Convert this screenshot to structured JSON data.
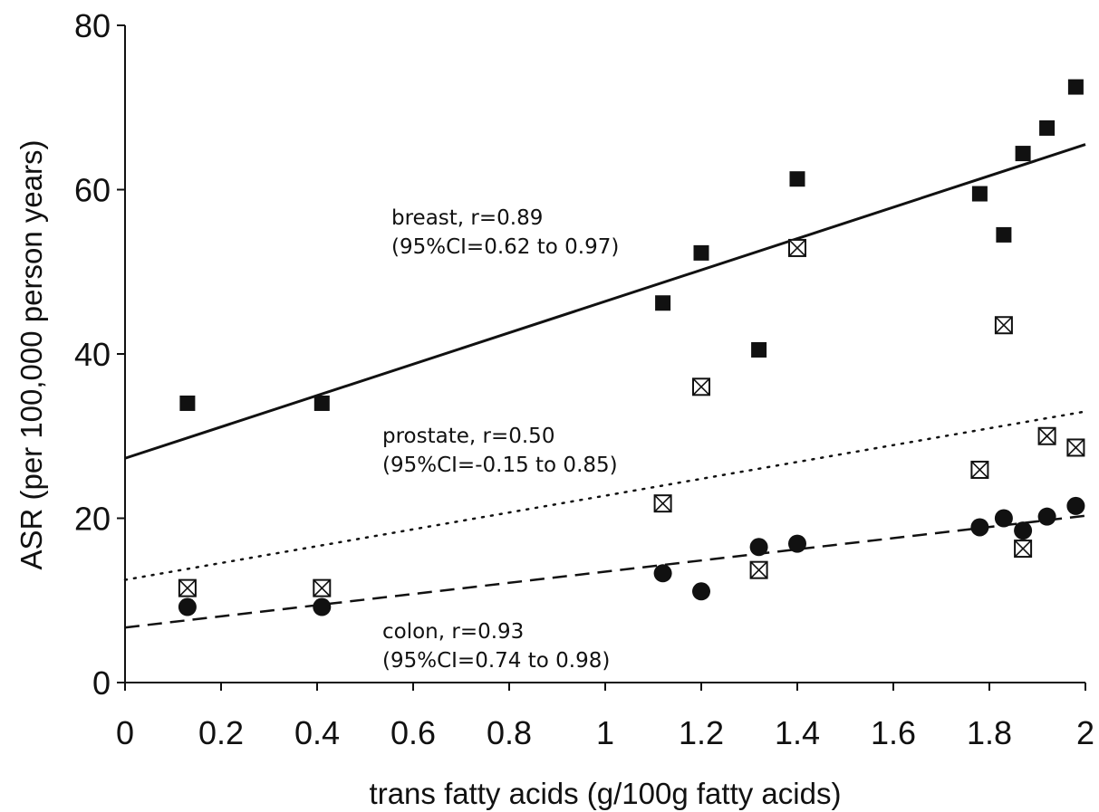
{
  "chart_data": {
    "type": "scatter",
    "title": "",
    "xlabel": "trans fatty acids (g/100g fatty acids)",
    "ylabel": "ASR (per 100,000 person years)",
    "xlim": [
      0,
      2
    ],
    "ylim": [
      0,
      80
    ],
    "x_ticks": [
      0,
      0.2,
      0.4,
      0.6,
      0.8,
      1,
      1.2,
      1.4,
      1.6,
      1.8,
      2
    ],
    "x_tick_labels": [
      "0",
      "0.2",
      "0.4",
      "0.6",
      "0.8",
      "1",
      "1.2",
      "1.4",
      "1.6",
      "1.8",
      "2"
    ],
    "y_ticks": [
      0,
      20,
      40,
      60,
      80
    ],
    "y_tick_labels": [
      "0",
      "20",
      "40",
      "60",
      "80"
    ],
    "grid": false,
    "legend": "none",
    "series": [
      {
        "marker": "filled-square",
        "line_style": "solid",
        "fit": [
          27.3,
          65.5
        ],
        "label_lines": [
          "breast, r=0.89",
          "(95%CI=0.62 to 0.97)"
        ],
        "x": [
          0.13,
          0.41,
          1.12,
          1.2,
          1.32,
          1.4,
          1.78,
          1.83,
          1.87,
          1.92,
          1.98
        ],
        "y": [
          34,
          34,
          46.2,
          52.3,
          40.5,
          61.3,
          59.5,
          54.5,
          64.4,
          67.5,
          72.5
        ]
      },
      {
        "marker": "crossed-box",
        "line_style": "dotted",
        "fit": [
          12.5,
          33
        ],
        "label_lines": [
          "prostate, r=0.50",
          "(95%CI=-0.15 to 0.85)"
        ],
        "x": [
          0.13,
          0.41,
          1.12,
          1.2,
          1.32,
          1.4,
          1.78,
          1.83,
          1.87,
          1.92,
          1.98
        ],
        "y": [
          11.5,
          11.5,
          21.8,
          36,
          13.7,
          52.9,
          25.9,
          43.5,
          16.3,
          30,
          28.6
        ]
      },
      {
        "marker": "filled-circle",
        "line_style": "dashed",
        "fit": [
          6.7,
          20.3
        ],
        "label_lines": [
          "colon, r=0.93",
          "(95%CI=0.74 to 0.98)"
        ],
        "x": [
          0.13,
          0.41,
          1.12,
          1.2,
          1.32,
          1.4,
          1.78,
          1.83,
          1.87,
          1.92,
          1.98
        ],
        "y": [
          9.2,
          9.2,
          13.3,
          11.1,
          16.5,
          16.9,
          18.9,
          20,
          18.5,
          20.2,
          21.5
        ]
      }
    ]
  }
}
